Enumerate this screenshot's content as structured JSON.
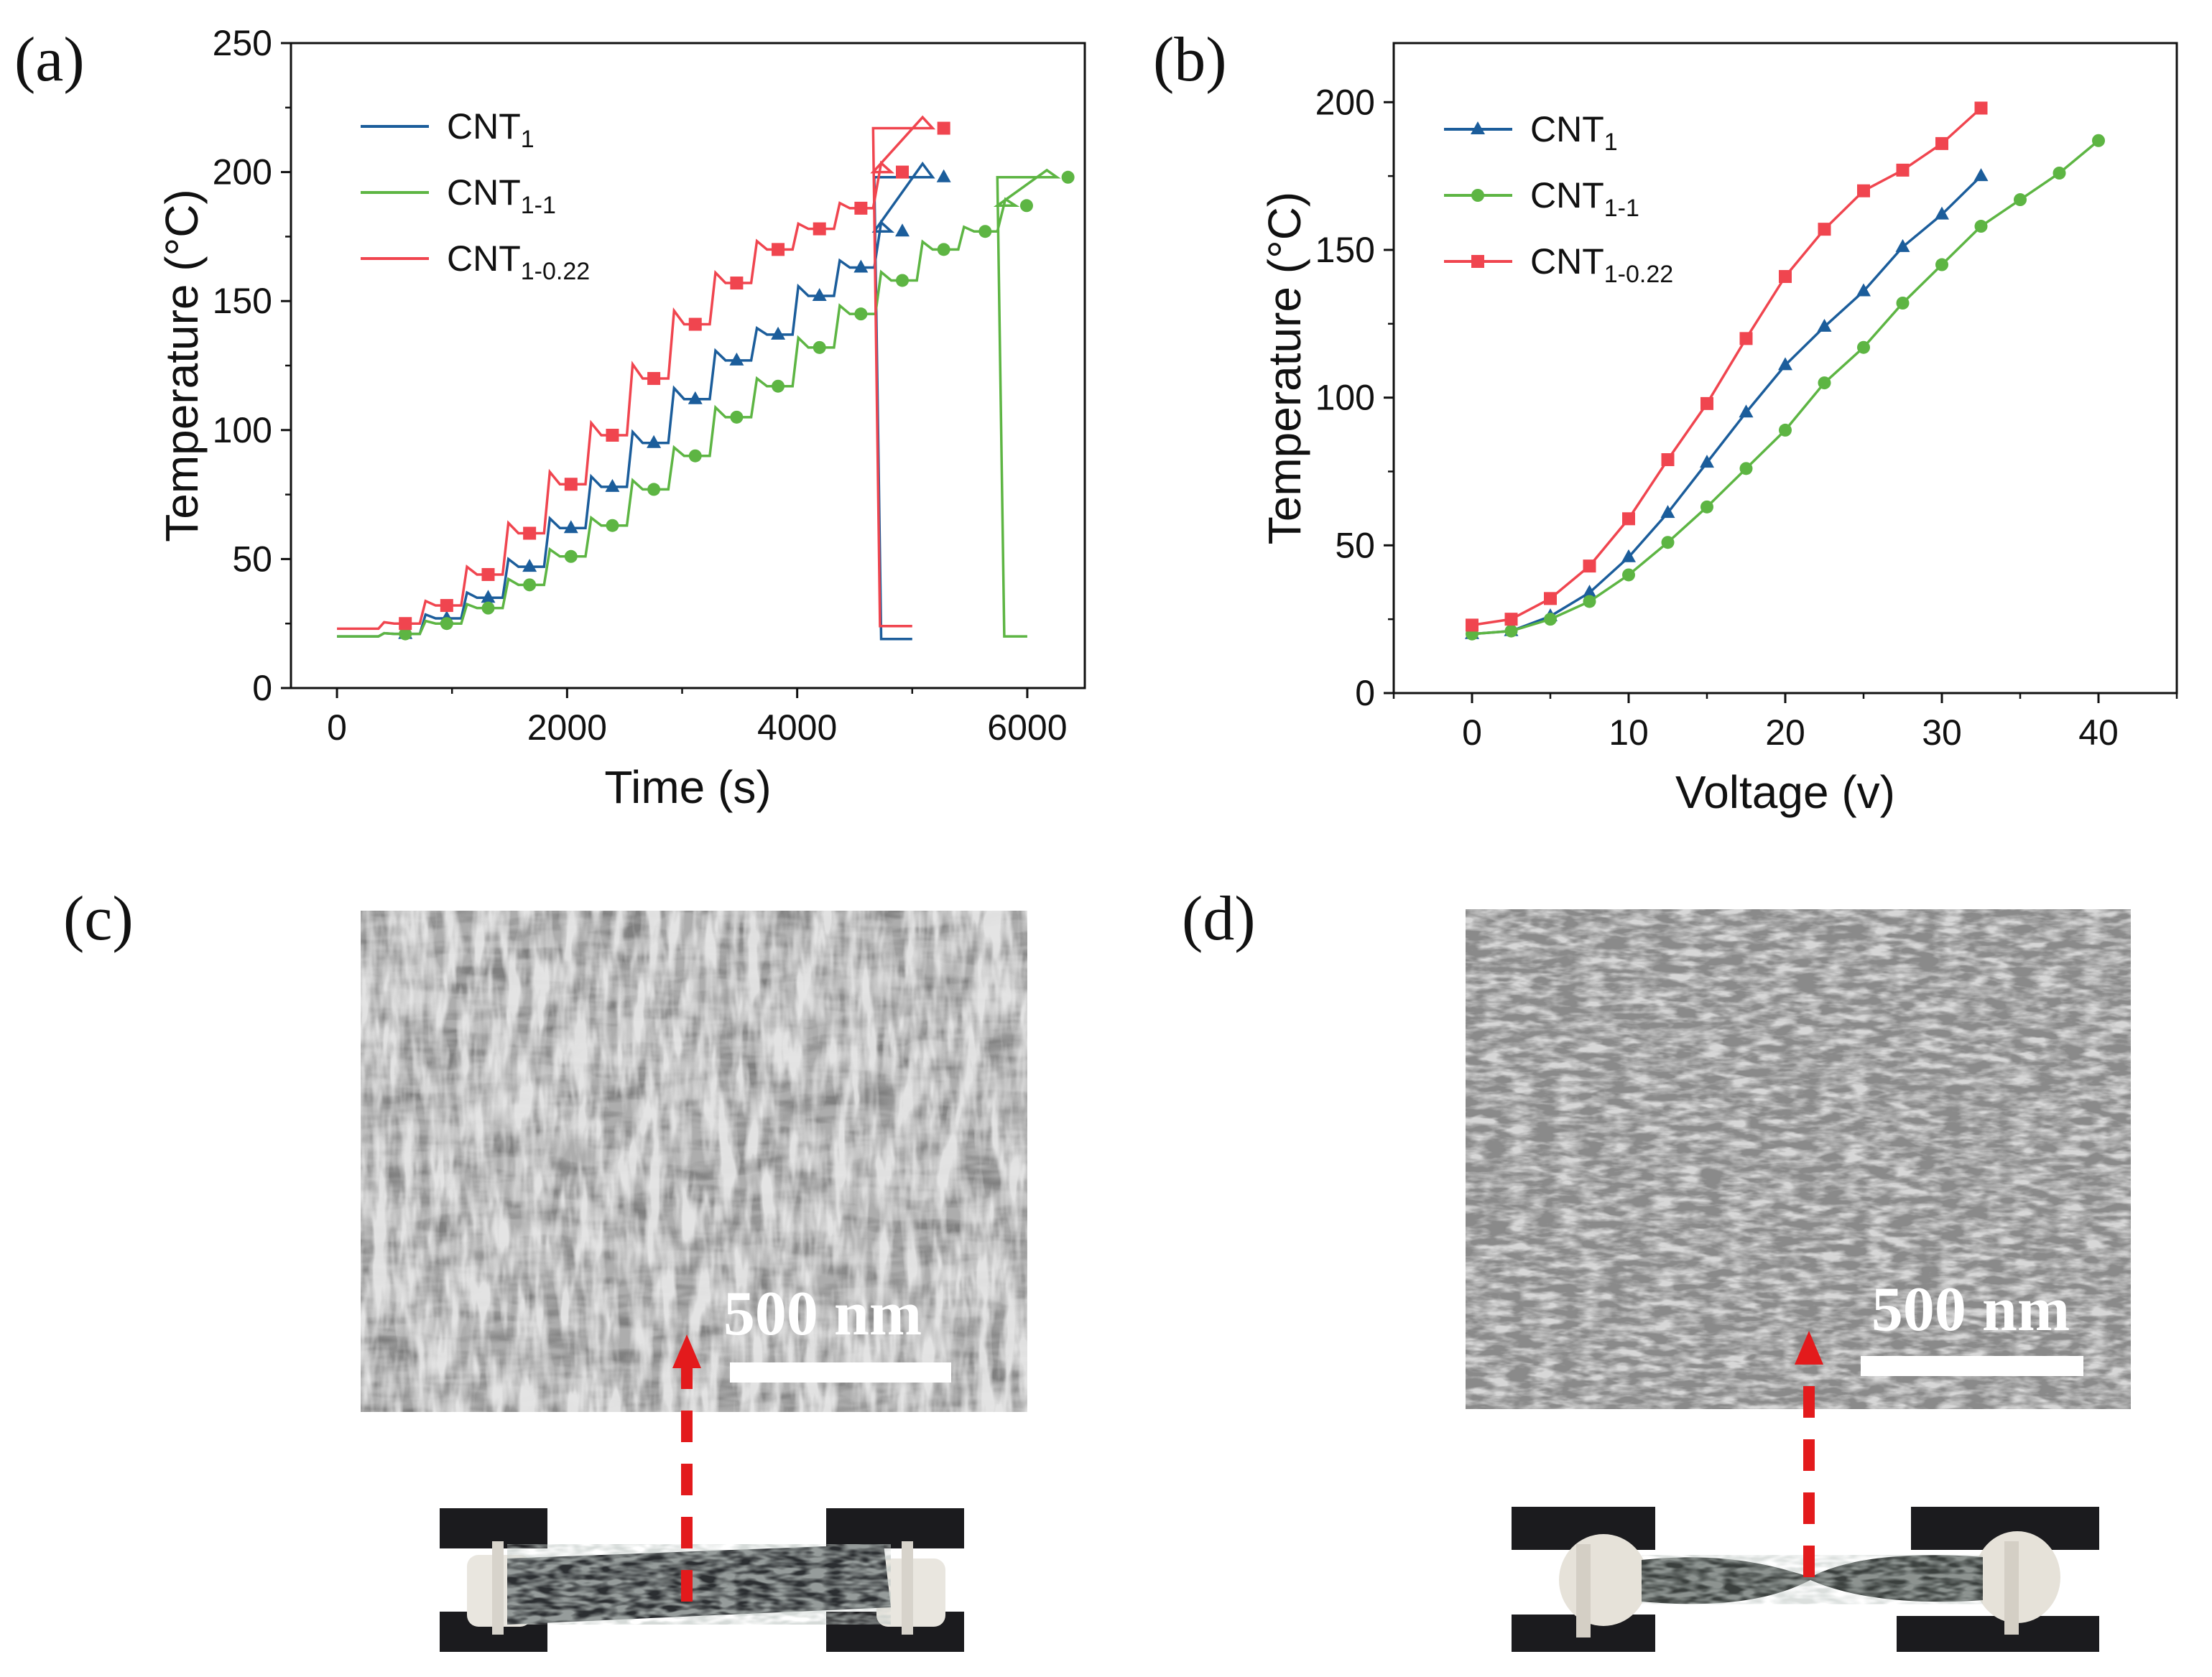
{
  "panels": {
    "a": "(a)",
    "b": "(b)",
    "c": "(c)",
    "d": "(d)"
  },
  "colors": {
    "CNT1": "#1b5d9b",
    "CNT1_1": "#5db543",
    "CNT1_022": "#f0454f",
    "arrow": "#e31a1c"
  },
  "chart_data": [
    {
      "id": "a",
      "type": "line",
      "xlabel": "Time (s)",
      "ylabel": "Temperature (°C)",
      "xlim": [
        -400,
        6500
      ],
      "ylim": [
        0,
        250
      ],
      "xticks": [
        "0",
        "2000",
        "4000",
        "6000"
      ],
      "xtick_values": [
        0,
        2000,
        4000,
        6000
      ],
      "yticks": [
        "0",
        "50",
        "100",
        "150",
        "200",
        "250"
      ],
      "ytick_values": [
        0,
        50,
        100,
        150,
        200,
        250
      ],
      "legend_position": "top-left",
      "series": [
        {
          "key": "CNT1",
          "base": "CNT",
          "sub": "1",
          "marker": "triangle",
          "step": 360,
          "plateaus": [
            20,
            21,
            27,
            35,
            47,
            62,
            78,
            95,
            112,
            127,
            137,
            152,
            163,
            177,
            198
          ],
          "end_x": 4730,
          "final_temp": 19,
          "stop_x": 5000
        },
        {
          "key": "CNT1_1",
          "base": "CNT",
          "sub": "1-1",
          "marker": "circle",
          "step": 360,
          "plateaus": [
            20,
            21,
            25,
            31,
            40,
            51,
            63,
            77,
            90,
            105,
            117,
            132,
            145,
            158,
            170,
            177,
            187,
            198
          ],
          "end_x": 5800,
          "final_temp": 20,
          "stop_x": 6000
        },
        {
          "key": "CNT1_022",
          "base": "CNT",
          "sub": "1-0.22",
          "marker": "square",
          "step": 360,
          "plateaus": [
            23,
            25,
            32,
            44,
            60,
            79,
            98,
            120,
            141,
            157,
            170,
            178,
            186,
            200,
            217
          ],
          "end_x": 4720,
          "final_temp": 24,
          "stop_x": 5000
        }
      ]
    },
    {
      "id": "b",
      "type": "line",
      "xlabel": "Voltage (v)",
      "ylabel": "Temperature (°C)",
      "xlim": [
        -5,
        45
      ],
      "ylim": [
        0,
        220
      ],
      "xticks": [
        "0",
        "10",
        "20",
        "30",
        "40"
      ],
      "xtick_values": [
        0,
        10,
        20,
        30,
        40
      ],
      "yticks": [
        "0",
        "50",
        "100",
        "150",
        "200"
      ],
      "ytick_values": [
        0,
        50,
        100,
        150,
        200
      ],
      "legend_position": "top-left",
      "series": [
        {
          "key": "CNT1",
          "base": "CNT",
          "sub": "1",
          "marker": "triangle",
          "x": [
            0,
            2.5,
            5,
            7.5,
            10,
            12.5,
            15,
            17.5,
            20,
            22.5,
            25,
            27.5,
            30,
            32.5
          ],
          "y": [
            20,
            21,
            26,
            34,
            46,
            61,
            78,
            95,
            111,
            124,
            136,
            151,
            162,
            175
          ]
        },
        {
          "key": "CNT1_1",
          "base": "CNT",
          "sub": "1-1",
          "marker": "circle",
          "x": [
            0,
            2.5,
            5,
            7.5,
            10,
            12.5,
            15,
            17.5,
            20,
            22.5,
            25,
            27.5,
            30,
            32.5,
            35,
            37.5,
            40
          ],
          "y": [
            20,
            21,
            25,
            31,
            40,
            51,
            63,
            76,
            89,
            105,
            117,
            132,
            145,
            158,
            167,
            176,
            187
          ]
        },
        {
          "key": "CNT1_022",
          "base": "CNT",
          "sub": "1-0.22",
          "marker": "square",
          "x": [
            0,
            2.5,
            5,
            7.5,
            10,
            12.5,
            15,
            17.5,
            20,
            22.5,
            25,
            27.5,
            30,
            32.5
          ],
          "y": [
            23,
            25,
            32,
            43,
            59,
            79,
            98,
            120,
            141,
            157,
            170,
            177,
            186,
            198
          ]
        }
      ]
    }
  ],
  "scale_bar_c": "500 nm",
  "scale_bar_d": "500 nm"
}
